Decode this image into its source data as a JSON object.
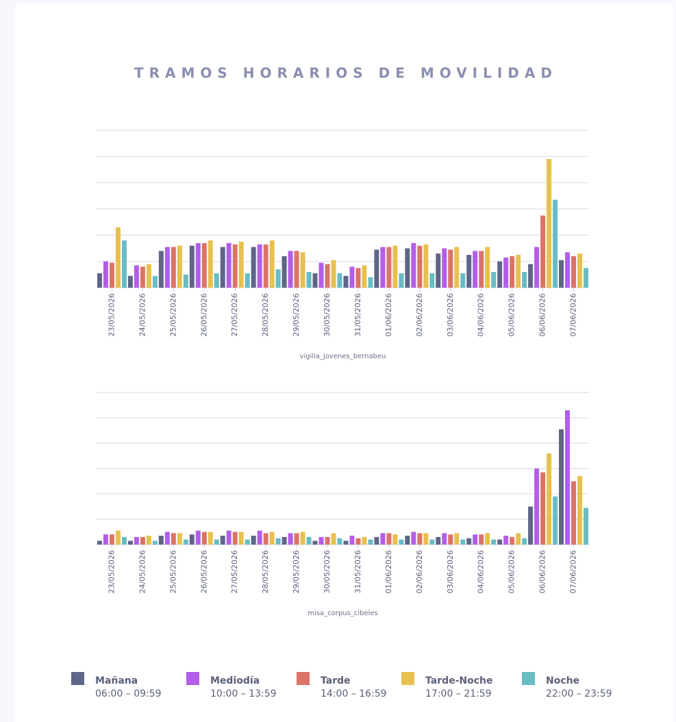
{
  "title": "TRAMOS HORARIOS DE MOVILIDAD",
  "legend_ranges": [
    "06:00 – 09:59",
    "10:00 – 13:59",
    "14:00 – 16:59",
    "17:00 – 21:59",
    "22:00 – 23:59"
  ],
  "chart_data": [
    {
      "type": "bar",
      "x_label": "vigilia_jovenes_bernabeu",
      "categories": [
        "23/05/2026",
        "24/05/2026",
        "25/05/2026",
        "26/05/2026",
        "27/05/2026",
        "28/05/2026",
        "29/05/2026",
        "30/05/2026",
        "31/05/2026",
        "01/06/2026",
        "02/06/2026",
        "03/06/2026",
        "04/06/2026",
        "05/06/2026",
        "06/06/2026",
        "07/06/2026"
      ],
      "ylim": [
        0,
        6
      ],
      "yticks": [
        1,
        2,
        3,
        4,
        5,
        6
      ],
      "grid": true,
      "series": [
        {
          "name": "Mañana",
          "color": "#5f6587",
          "values": [
            0.55,
            0.45,
            1.4,
            1.6,
            1.55,
            1.55,
            1.2,
            0.55,
            0.45,
            1.45,
            1.5,
            1.3,
            1.25,
            1.0,
            0.9,
            1.05
          ]
        },
        {
          "name": "Mediodía",
          "color": "#b25ee8",
          "values": [
            1.0,
            0.85,
            1.55,
            1.7,
            1.7,
            1.65,
            1.4,
            0.95,
            0.8,
            1.55,
            1.7,
            1.5,
            1.4,
            1.15,
            1.55,
            1.35
          ]
        },
        {
          "name": "Tarde",
          "color": "#dc7368",
          "values": [
            0.95,
            0.8,
            1.55,
            1.7,
            1.65,
            1.65,
            1.4,
            0.9,
            0.75,
            1.55,
            1.6,
            1.45,
            1.4,
            1.2,
            2.75,
            1.2
          ]
        },
        {
          "name": "Tarde-Noche",
          "color": "#e8c04f",
          "values": [
            2.3,
            0.9,
            1.6,
            1.8,
            1.75,
            1.8,
            1.35,
            1.05,
            0.85,
            1.6,
            1.65,
            1.55,
            1.55,
            1.25,
            4.9,
            1.3
          ]
        },
        {
          "name": "Noche",
          "color": "#69bcc4",
          "values": [
            1.8,
            0.45,
            0.5,
            0.55,
            0.55,
            0.7,
            0.6,
            0.55,
            0.4,
            0.55,
            0.55,
            0.55,
            0.6,
            0.6,
            3.35,
            0.75
          ]
        }
      ]
    },
    {
      "type": "bar",
      "x_label": "misa_corpus_cibeles",
      "categories": [
        "23/05/2026",
        "24/05/2026",
        "25/05/2026",
        "26/05/2026",
        "27/05/2026",
        "28/05/2026",
        "29/05/2026",
        "30/05/2026",
        "31/05/2026",
        "01/06/2026",
        "02/06/2026",
        "03/06/2026",
        "04/06/2026",
        "05/06/2026",
        "06/06/2026",
        "07/06/2026"
      ],
      "ylim": [
        0,
        6
      ],
      "yticks": [
        1,
        2,
        3,
        4,
        5,
        6
      ],
      "grid": true,
      "series": [
        {
          "name": "Mañana",
          "color": "#5f6587",
          "values": [
            0.15,
            0.15,
            0.35,
            0.4,
            0.35,
            0.35,
            0.3,
            0.15,
            0.15,
            0.3,
            0.35,
            0.3,
            0.25,
            0.2,
            1.5,
            4.55
          ]
        },
        {
          "name": "Mediodía",
          "color": "#b25ee8",
          "values": [
            0.4,
            0.3,
            0.5,
            0.55,
            0.55,
            0.55,
            0.45,
            0.3,
            0.35,
            0.45,
            0.5,
            0.45,
            0.4,
            0.35,
            3.0,
            5.3
          ]
        },
        {
          "name": "Tarde",
          "color": "#dc7368",
          "values": [
            0.4,
            0.3,
            0.45,
            0.5,
            0.5,
            0.45,
            0.45,
            0.3,
            0.25,
            0.45,
            0.45,
            0.4,
            0.4,
            0.3,
            2.85,
            2.5
          ]
        },
        {
          "name": "Tarde-Noche",
          "color": "#e8c04f",
          "values": [
            0.55,
            0.35,
            0.45,
            0.5,
            0.5,
            0.5,
            0.5,
            0.45,
            0.3,
            0.4,
            0.45,
            0.45,
            0.45,
            0.45,
            3.6,
            2.7
          ]
        },
        {
          "name": "Noche",
          "color": "#69bcc4",
          "values": [
            0.3,
            0.15,
            0.2,
            0.2,
            0.2,
            0.25,
            0.3,
            0.25,
            0.2,
            0.2,
            0.2,
            0.2,
            0.2,
            0.25,
            1.9,
            1.45
          ]
        }
      ]
    }
  ]
}
